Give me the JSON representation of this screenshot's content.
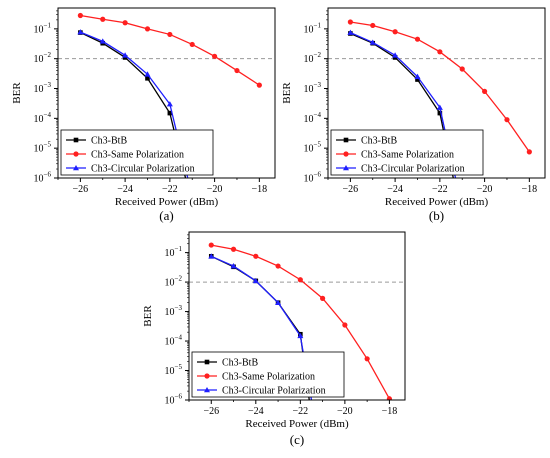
{
  "panels": [
    {
      "label": "(a)"
    },
    {
      "label": "(b)"
    },
    {
      "label": "(c)"
    }
  ],
  "chart_data": [
    {
      "type": "line",
      "panel_label": "(a)",
      "xlabel": "Received Power (dBm)",
      "ylabel": "BER",
      "yscale": "log",
      "xlim": [
        -27,
        -17.3
      ],
      "ylim": [
        1e-06,
        0.5
      ],
      "xticks": [
        -26,
        -24,
        -22,
        -20,
        -18
      ],
      "xtick_labels": [
        "−26",
        "−24",
        "−22",
        "−20",
        "−18"
      ],
      "yticks": [
        1e-06,
        1e-05,
        0.0001,
        0.001,
        0.01,
        0.1
      ],
      "ytick_labels": [
        "10",
        "10",
        "10",
        "10",
        "10",
        "10"
      ],
      "ytick_exponents": [
        "−6",
        "−5",
        "−4",
        "−3",
        "−2",
        "−1"
      ],
      "threshold": 0.01,
      "legend_position": "bottom-left",
      "series": [
        {
          "name": "Ch3-BtB",
          "color": "#000000",
          "marker": "square",
          "x": [
            -26,
            -25,
            -24,
            -23,
            -22,
            -21.3
          ],
          "y": [
            0.075,
            0.033,
            0.011,
            0.0022,
            0.00015,
            1e-06
          ]
        },
        {
          "name": "Ch3-Same Polarization",
          "color": "#ff2020",
          "marker": "circle",
          "x": [
            -26,
            -25,
            -24,
            -23,
            -22,
            -21,
            -20,
            -19,
            -18
          ],
          "y": [
            0.28,
            0.21,
            0.16,
            0.1,
            0.065,
            0.03,
            0.012,
            0.004,
            0.0013
          ]
        },
        {
          "name": "Ch3-Circular Polarization",
          "color": "#1f1fff",
          "marker": "triangle",
          "x": [
            -26,
            -25,
            -24,
            -23,
            -22,
            -21.2
          ],
          "y": [
            0.078,
            0.038,
            0.013,
            0.003,
            0.0003,
            1e-06
          ]
        }
      ]
    },
    {
      "type": "line",
      "panel_label": "(b)",
      "xlabel": "Received Power (dBm)",
      "ylabel": "BER",
      "yscale": "log",
      "xlim": [
        -27,
        -17.3
      ],
      "ylim": [
        1e-06,
        0.5
      ],
      "xticks": [
        -26,
        -24,
        -22,
        -20,
        -18
      ],
      "xtick_labels": [
        "−26",
        "−24",
        "−22",
        "−20",
        "−18"
      ],
      "yticks": [
        1e-06,
        1e-05,
        0.0001,
        0.001,
        0.01,
        0.1
      ],
      "ytick_labels": [
        "10",
        "10",
        "10",
        "10",
        "10",
        "10"
      ],
      "ytick_exponents": [
        "−6",
        "−5",
        "−4",
        "−3",
        "−2",
        "−1"
      ],
      "threshold": 0.01,
      "legend_position": "bottom-left",
      "series": [
        {
          "name": "Ch3-BtB",
          "color": "#000000",
          "marker": "square",
          "x": [
            -26,
            -25,
            -24,
            -23,
            -22,
            -21.4
          ],
          "y": [
            0.07,
            0.033,
            0.011,
            0.002,
            0.00015,
            1e-06
          ]
        },
        {
          "name": "Ch3-Same Polarization",
          "color": "#ff2020",
          "marker": "circle",
          "x": [
            -26,
            -25,
            -24,
            -23,
            -22,
            -21,
            -20,
            -19,
            -18
          ],
          "y": [
            0.17,
            0.13,
            0.08,
            0.045,
            0.017,
            0.0045,
            0.0008,
            9e-05,
            7.5e-06
          ]
        },
        {
          "name": "Ch3-Circular Polarization",
          "color": "#1f1fff",
          "marker": "triangle",
          "x": [
            -26,
            -25,
            -24,
            -23,
            -22,
            -21.3
          ],
          "y": [
            0.075,
            0.035,
            0.013,
            0.0025,
            0.00023,
            1e-06
          ]
        }
      ]
    },
    {
      "type": "line",
      "panel_label": "(c)",
      "xlabel": "Received Power (dBm)",
      "ylabel": "BER",
      "yscale": "log",
      "xlim": [
        -27,
        -17.3
      ],
      "ylim": [
        1e-06,
        0.5
      ],
      "xticks": [
        -26,
        -24,
        -22,
        -20,
        -18
      ],
      "xtick_labels": [
        "−26",
        "−24",
        "−22",
        "−20",
        "−18"
      ],
      "yticks": [
        1e-06,
        1e-05,
        0.0001,
        0.001,
        0.01,
        0.1
      ],
      "ytick_labels": [
        "10",
        "10",
        "10",
        "10",
        "10",
        "10"
      ],
      "ytick_exponents": [
        "−6",
        "−5",
        "−4",
        "−3",
        "−2",
        "−1"
      ],
      "threshold": 0.01,
      "legend_position": "bottom-left",
      "series": [
        {
          "name": "Ch3-BtB",
          "color": "#000000",
          "marker": "square",
          "x": [
            -26,
            -25,
            -24,
            -23,
            -22,
            -21.6
          ],
          "y": [
            0.075,
            0.033,
            0.011,
            0.002,
            0.00017,
            1e-06
          ]
        },
        {
          "name": "Ch3-Same Polarization",
          "color": "#ff2020",
          "marker": "circle",
          "x": [
            -26,
            -25,
            -24,
            -23,
            -22,
            -21,
            -20,
            -19,
            -18
          ],
          "y": [
            0.18,
            0.13,
            0.075,
            0.035,
            0.012,
            0.0028,
            0.00035,
            2.5e-05,
            1.1e-06
          ]
        },
        {
          "name": "Ch3-Circular Polarization",
          "color": "#1f1fff",
          "marker": "triangle",
          "x": [
            -26,
            -25,
            -24,
            -23,
            -22,
            -21.5
          ],
          "y": [
            0.075,
            0.035,
            0.011,
            0.002,
            0.00015,
            1e-06
          ]
        }
      ]
    }
  ]
}
